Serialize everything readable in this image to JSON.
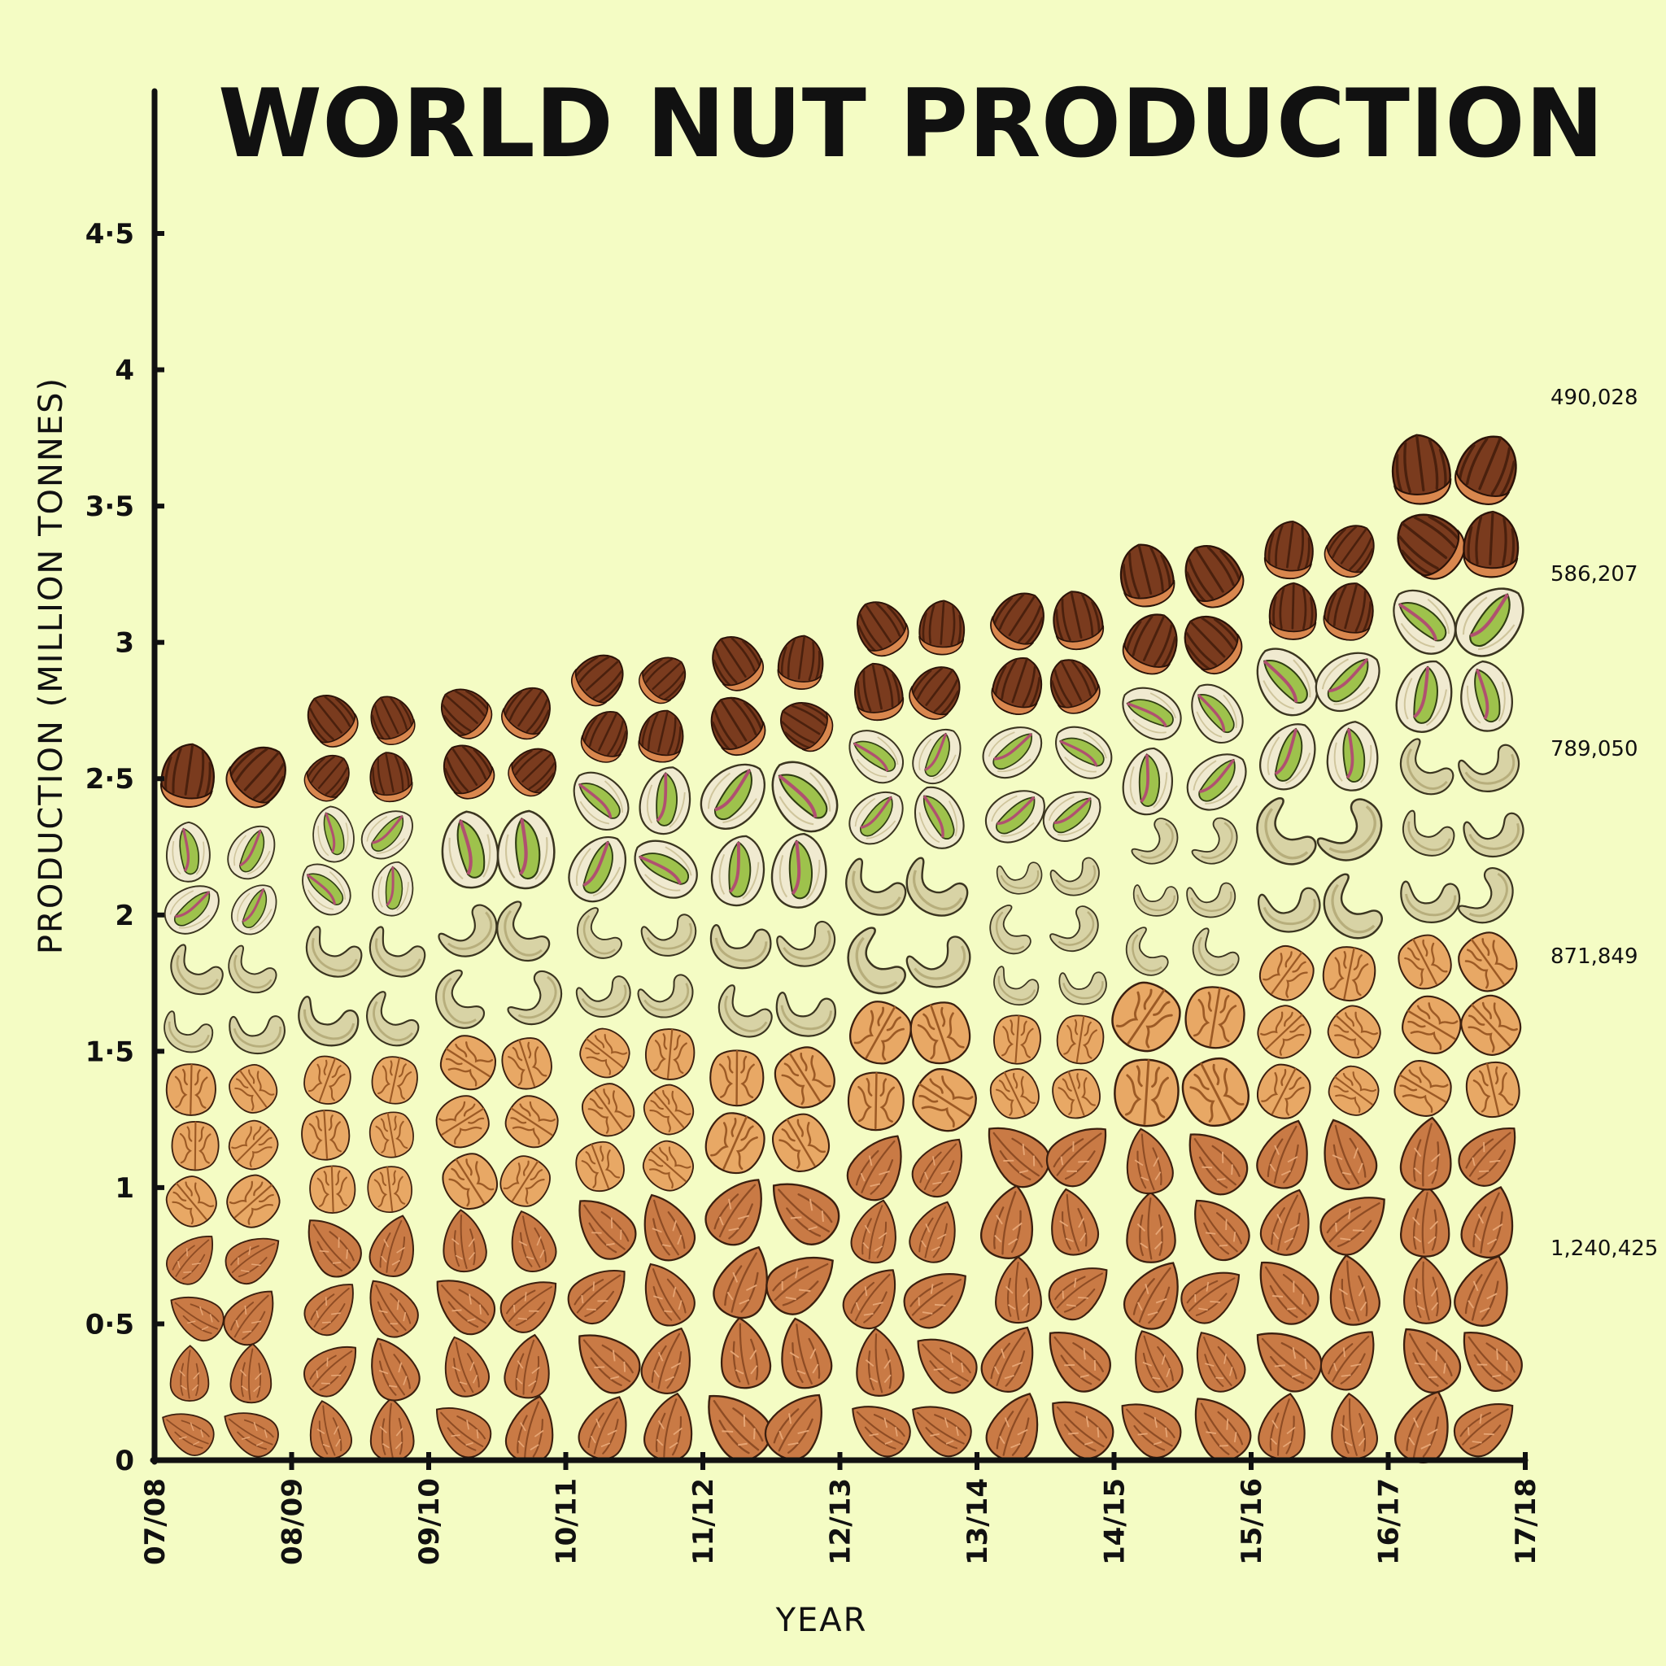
{
  "chart_data": {
    "type": "area",
    "title": "WORLD NUT PRODUCTION",
    "xlabel": "YEAR",
    "ylabel": "PRODUCTION (MILLION TONNES)",
    "ylim": [
      0,
      4.5
    ],
    "y_ticks": [
      "0",
      "0·5",
      "1",
      "1·5",
      "2",
      "2·5",
      "3",
      "3·5",
      "4",
      "4·5"
    ],
    "categories": [
      "07/08",
      "08/09",
      "09/10",
      "10/11",
      "11/12",
      "12/13",
      "13/14",
      "14/15",
      "15/16",
      "16/17",
      "17/18"
    ],
    "stacked": true,
    "series": [
      {
        "key": "almond",
        "icon": "almond-icon",
        "color": "#c97a45",
        "values": [
          0.85,
          0.9,
          0.92,
          0.98,
          1.05,
          1.2,
          1.25,
          1.22,
          1.25,
          1.25,
          1.24
        ]
      },
      {
        "key": "walnut",
        "icon": "walnut-icon",
        "color": "#e8a865",
        "values": [
          0.62,
          0.6,
          0.65,
          0.62,
          0.48,
          0.5,
          0.4,
          0.55,
          0.65,
          0.7,
          0.87
        ]
      },
      {
        "key": "cashew",
        "icon": "cashew-icon",
        "color": "#d8d3a5",
        "values": [
          0.45,
          0.5,
          0.5,
          0.45,
          0.5,
          0.55,
          0.6,
          0.6,
          0.55,
          0.72,
          0.79
        ]
      },
      {
        "key": "pistachio",
        "icon": "pistachio-icon",
        "color": "#9ec24c",
        "values": [
          0.42,
          0.4,
          0.35,
          0.5,
          0.55,
          0.45,
          0.47,
          0.5,
          0.55,
          0.55,
          0.59
        ]
      },
      {
        "key": "hazelnut",
        "icon": "hazelnut-icon",
        "color": "#7a3b1e",
        "values": [
          0.34,
          0.42,
          0.43,
          0.42,
          0.46,
          0.47,
          0.48,
          0.5,
          0.45,
          0.55,
          0.49
        ]
      }
    ],
    "annotations": [
      "490,028",
      "586,207",
      "789,050",
      "871,849",
      "1,240,425"
    ],
    "grid": false,
    "legend": "none"
  }
}
